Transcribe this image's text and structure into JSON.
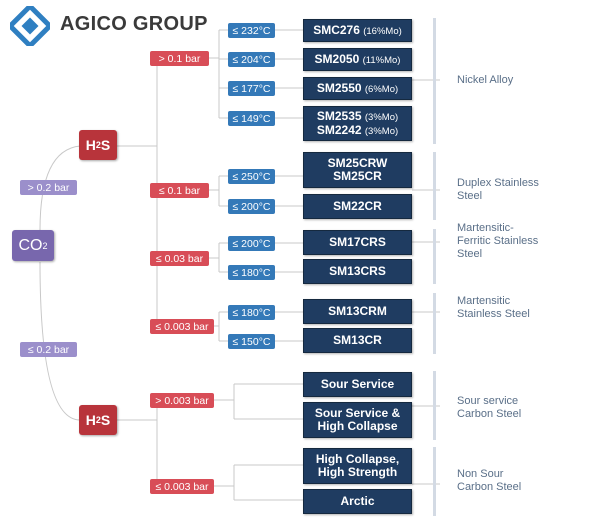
{
  "brand": {
    "name": "AGICO GROUP"
  },
  "root": {
    "co2_main": "CO",
    "co2_sub": "2"
  },
  "pressures": {
    "co2_high": "> 0.2 bar",
    "co2_low": "≤ 0.2 bar",
    "h2s_gt_01": "> 0.1 bar",
    "h2s_le_01": "≤ 0.1 bar",
    "h2s_le_003": "≤ 0.03 bar",
    "h2s_le_0003": "≤ 0.003 bar",
    "h2s2_gt_0003": "> 0.003 bar",
    "h2s2_le_0003": "≤ 0.003 bar"
  },
  "gas": {
    "h2s_main": "H",
    "h2s_sub": "2",
    "h2s_tail": "S"
  },
  "temps": {
    "t232": "≤ 232°C",
    "t204": "≤ 204°C",
    "t177": "≤ 177°C",
    "t149": "≤ 149°C",
    "t250": "≤ 250°C",
    "t200a": "≤ 200°C",
    "t200b": "≤ 200°C",
    "t180a": "≤ 180°C",
    "t180b": "≤ 180°C",
    "t150": "≤ 150°C"
  },
  "materials": {
    "smc276": {
      "name": "SMC276",
      "note": "(16%Mo)"
    },
    "sm2050": {
      "name": "SM2050",
      "note": "(11%Mo)"
    },
    "sm2550": {
      "name": "SM2550",
      "note": "(6%Mo)"
    },
    "sm2535": {
      "name": "SM2535",
      "note": "(3%Mo)"
    },
    "sm2242": {
      "name": "SM2242",
      "note": "(3%Mo)"
    },
    "sm25crw": "SM25CRW",
    "sm25cr": "SM25CR",
    "sm22cr": "SM22CR",
    "sm17crs": "SM17CRS",
    "sm13crs": "SM13CRS",
    "sm13crm": "SM13CRM",
    "sm13cr": "SM13CR",
    "sour_service": "Sour Service",
    "sour_collapse_1": "Sour Service &",
    "sour_collapse_2": "High Collapse",
    "high_collapse_1": "High Collapse,",
    "high_collapse_2": "High Strength",
    "arctic": "Arctic"
  },
  "categories": {
    "nickel": "Nickel Alloy",
    "duplex_1": "Duplex Stainless",
    "duplex_2": "Steel",
    "mf_1": "Martensitic-",
    "mf_2": "Ferritic Stainless",
    "mf_3": "Steel",
    "mart_1": "Martensitic",
    "mart_2": "Stainless Steel",
    "sour_1": "Sour service",
    "sour_2": "Carbon Steel",
    "nonsour_1": "Non Sour",
    "nonsour_2": "Carbon Steel"
  },
  "colors": {
    "gas": "#b8343b",
    "co2": "#7867ad",
    "pressure_lavender": "#9b8fcb",
    "pressure_red": "#d84d57",
    "temperature": "#3479b8",
    "material": "#1f3c61",
    "category_text": "#5a6f88"
  }
}
